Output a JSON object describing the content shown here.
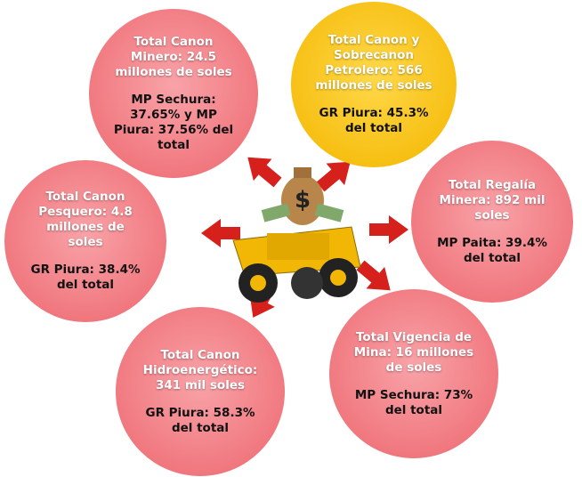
{
  "nodes": [
    {
      "title": "Total Canon Minero: 24.5 millones de soles",
      "detail": "MP Sechura: 37.65%  y MP Piura: 37.56% del total"
    },
    {
      "title": "Total Canon y Sobrecanon Petrolero: 566 millones de soles",
      "detail": "GR Piura: 45.3% del total"
    },
    {
      "title": "Total Regalía Minera: 892 mil soles",
      "detail": "MP Paita: 39.4% del total"
    },
    {
      "title": "Total Canon Pesquero: 4.8 millones de soles",
      "detail": "GR Piura: 38.4% del total"
    },
    {
      "title": "Total Vigencia de Mina: 16 millones de soles",
      "detail": "MP Sechura: 73% del total"
    },
    {
      "title": "Total Canon Hidroenergético: 341 mil soles",
      "detail": "GR Piura: 58.3% del total"
    }
  ]
}
